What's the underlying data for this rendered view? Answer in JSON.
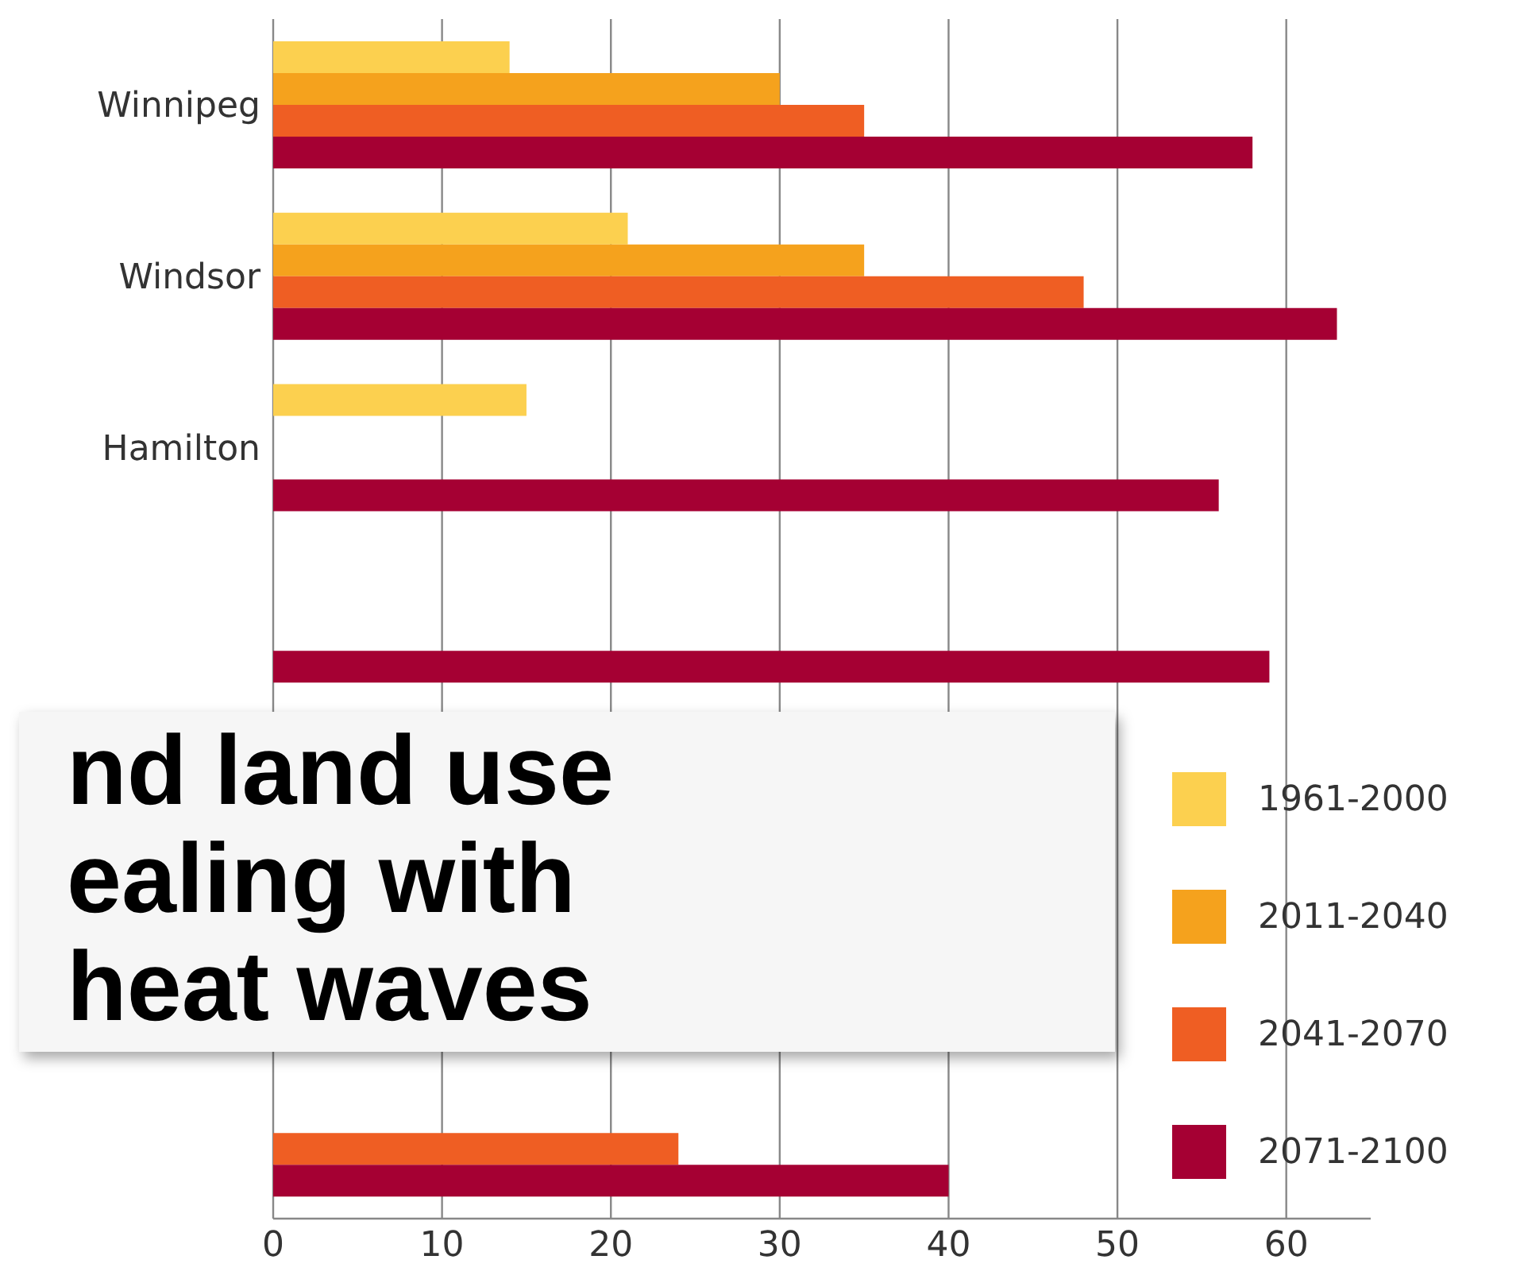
{
  "chart_data": {
    "type": "bar",
    "orientation": "horizontal",
    "categories": [
      "Winnipeg",
      "Windsor",
      "Hamilton",
      null,
      null,
      null,
      null
    ],
    "series": [
      {
        "name": "1961-2000",
        "color": "#fcd04f",
        "values": [
          14,
          21,
          15,
          null,
          null,
          null,
          null
        ]
      },
      {
        "name": "2011-2040",
        "color": "#f5a21d",
        "values": [
          30,
          35,
          null,
          null,
          null,
          null,
          null
        ]
      },
      {
        "name": "2041-2070",
        "color": "#ef5e23",
        "values": [
          35,
          48,
          null,
          null,
          null,
          null,
          24
        ]
      },
      {
        "name": "2071-2100",
        "color": "#a50033",
        "values": [
          58,
          63,
          56,
          59,
          null,
          null,
          40
        ]
      }
    ],
    "xlim": [
      0,
      65
    ],
    "xticks": [
      0,
      10,
      20,
      30,
      40,
      50,
      60
    ],
    "grid": "x",
    "legend": "bottom right",
    "annotations": [
      "nd land use",
      "ealing with",
      "heat waves"
    ]
  }
}
